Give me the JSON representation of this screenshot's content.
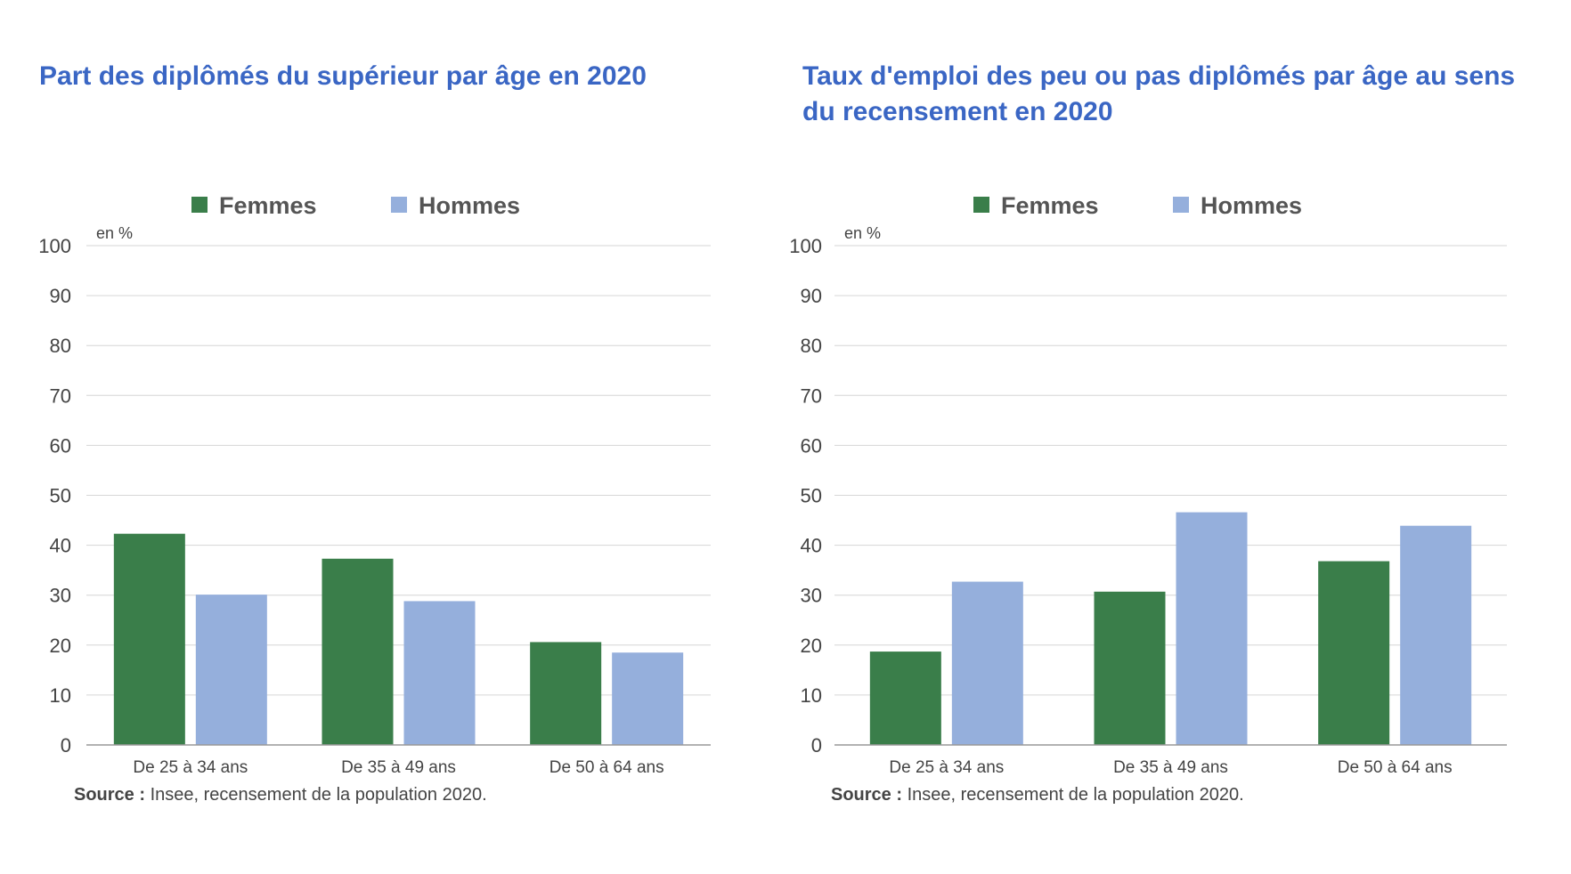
{
  "colors": {
    "femmes": "#3a7e4a",
    "hommes": "#95afdc",
    "title": "#3a66c4",
    "grid": "#d6d6d6"
  },
  "source": {
    "label": "Source :",
    "text": "Insee, recensement de la population 2020."
  },
  "chart_data": [
    {
      "type": "bar",
      "title": "Part des diplômés du supérieur par âge en 2020",
      "unit_label": "en %",
      "categories": [
        "De 25 à 34 ans",
        "De 35 à 49 ans",
        "De 50 à 64 ans"
      ],
      "series": [
        {
          "name": "Femmes",
          "values": [
            42.3,
            37.3,
            20.6
          ]
        },
        {
          "name": "Hommes",
          "values": [
            30.1,
            28.8,
            18.5
          ]
        }
      ],
      "ylim": [
        0,
        100
      ],
      "yticks": [
        0,
        10,
        20,
        30,
        40,
        50,
        60,
        70,
        80,
        90,
        100
      ],
      "grid": true,
      "legend": "top"
    },
    {
      "type": "bar",
      "title": "Taux d'emploi des peu ou pas diplômés par âge  au sens du recensement en 2020",
      "unit_label": "en %",
      "categories": [
        "De 25 à 34 ans",
        "De 35 à 49 ans",
        "De 50 à 64 ans"
      ],
      "series": [
        {
          "name": "Femmes",
          "values": [
            18.7,
            30.7,
            36.8
          ]
        },
        {
          "name": "Hommes",
          "values": [
            32.7,
            46.6,
            43.9
          ]
        }
      ],
      "ylim": [
        0,
        100
      ],
      "yticks": [
        0,
        10,
        20,
        30,
        40,
        50,
        60,
        70,
        80,
        90,
        100
      ],
      "grid": true,
      "legend": "top"
    }
  ]
}
